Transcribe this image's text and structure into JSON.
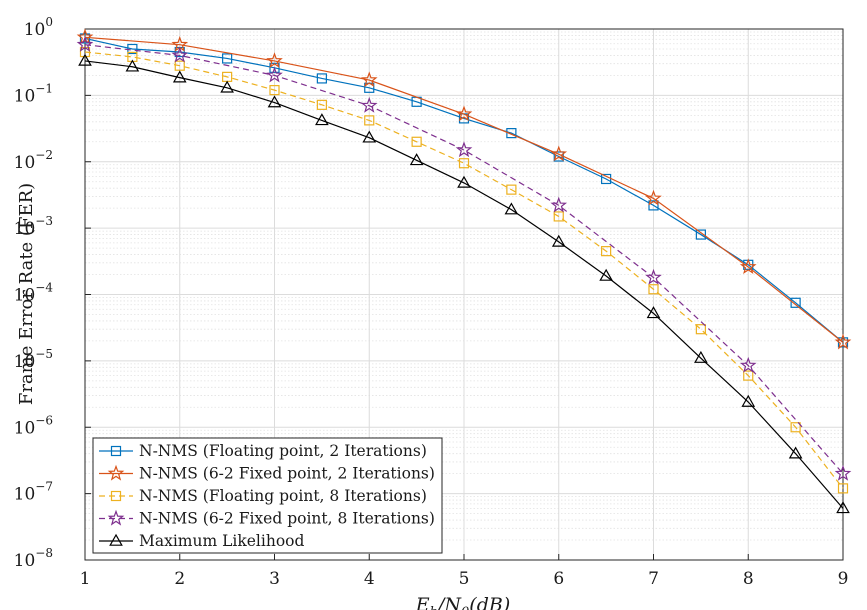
{
  "chart_data": {
    "type": "line",
    "x": [
      1,
      1.5,
      2,
      2.5,
      3,
      3.5,
      4,
      4.5,
      5,
      5.5,
      6,
      6.5,
      7,
      7.5,
      8,
      8.5,
      9
    ],
    "xlim": [
      1,
      9
    ],
    "xticks": [
      "1",
      "2",
      "3",
      "4",
      "5",
      "6",
      "7",
      "8",
      "9"
    ],
    "ylim": [
      1e-08,
      1
    ],
    "yscale": "log",
    "yticks": [
      {
        "base": "10",
        "exp": "0"
      },
      {
        "base": "10",
        "exp": "−1"
      },
      {
        "base": "10",
        "exp": "−2"
      },
      {
        "base": "10",
        "exp": "−3"
      },
      {
        "base": "10",
        "exp": "−4"
      },
      {
        "base": "10",
        "exp": "−5"
      },
      {
        "base": "10",
        "exp": "−6"
      },
      {
        "base": "10",
        "exp": "−7"
      },
      {
        "base": "10",
        "exp": "−8"
      }
    ],
    "ylabel": "Frame Error Rate (FER)",
    "xlabel": "Eb/N0(dB)",
    "grid": "major and minor",
    "legend_position": "bottom-left",
    "series": [
      {
        "name": "N-NMS (Floating point, 2 Iterations)",
        "color": "#0072BD",
        "marker": "square",
        "dash": "solid",
        "values": [
          0.72,
          0.5,
          0.45,
          0.36,
          0.26,
          0.18,
          0.13,
          0.08,
          0.045,
          0.027,
          0.012,
          0.0055,
          0.0022,
          0.0008,
          0.00028,
          7.5e-05,
          1.9e-05
        ]
      },
      {
        "name": "N-NMS (6-2 Fixed point, 2 Iterations)",
        "color": "#D95319",
        "marker": "star",
        "dash": "solid",
        "values": [
          0.75,
          null,
          0.58,
          null,
          0.33,
          null,
          0.17,
          null,
          0.052,
          null,
          0.013,
          null,
          0.0028,
          null,
          0.00026,
          null,
          1.9e-05
        ]
      },
      {
        "name": "N-NMS (Floating point, 8 Iterations)",
        "color": "#EDB120",
        "marker": "square",
        "dash": "dashed",
        "values": [
          0.45,
          0.38,
          0.28,
          0.19,
          0.12,
          0.072,
          0.042,
          0.02,
          0.0095,
          0.0038,
          0.0015,
          0.00045,
          0.00012,
          3e-05,
          6e-06,
          1e-06,
          1.2e-07
        ]
      },
      {
        "name": "N-NMS (6-2 Fixed point, 8 Iterations)",
        "color": "#7E2F8E",
        "marker": "star",
        "dash": "dashed",
        "values": [
          0.58,
          null,
          0.4,
          null,
          0.2,
          null,
          0.07,
          null,
          0.015,
          null,
          0.0022,
          null,
          0.00018,
          null,
          8.5e-06,
          null,
          2e-07
        ]
      },
      {
        "name": "Maximum Likelihood",
        "color": "#000000",
        "marker": "triangle",
        "dash": "solid",
        "values": [
          0.33,
          0.27,
          0.185,
          0.13,
          0.078,
          0.042,
          0.023,
          0.0105,
          0.0048,
          0.0019,
          0.00062,
          0.00019,
          5.2e-05,
          1.1e-05,
          2.4e-06,
          4e-07,
          6e-08
        ]
      }
    ]
  }
}
